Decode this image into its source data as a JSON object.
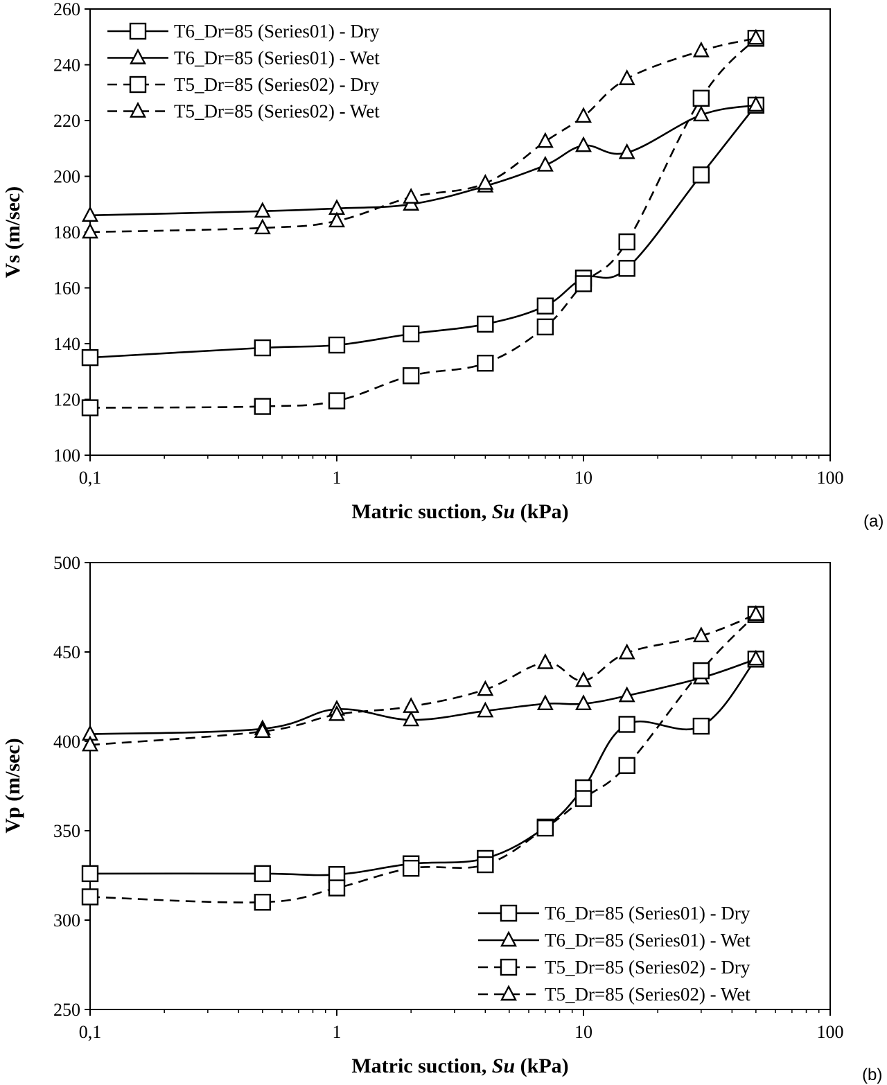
{
  "chart_data": [
    {
      "type": "line",
      "panel_label": "(a)",
      "xlabel_prefix": "Matric suction, ",
      "xlabel_italic": "Su",
      "xlabel_suffix": " (kPa)",
      "ylabel": "Vs (m/sec)",
      "xscale": "log",
      "xlim": [
        0.1,
        100
      ],
      "ylim": [
        100,
        260
      ],
      "x_ticks": [
        0.1,
        1,
        10,
        100
      ],
      "x_tick_labels": [
        "0,1",
        "1",
        "10",
        "100"
      ],
      "y_ticks": [
        100,
        120,
        140,
        160,
        180,
        200,
        220,
        240,
        260
      ],
      "y_tick_labels": [
        "100",
        "120",
        "140",
        "160",
        "180",
        "200",
        "220",
        "240",
        "260"
      ],
      "grid": false,
      "legend_position": "top-left",
      "x": [
        0.1,
        0.5,
        1,
        2,
        4,
        7,
        10,
        15,
        30,
        50
      ],
      "series": [
        {
          "name": "T6_Dr=85 (Series01) - Dry",
          "marker": "square",
          "line": "solid",
          "values": [
            135,
            138.5,
            139.5,
            143.5,
            147,
            153.5,
            163.5,
            167,
            200.5,
            225.5
          ]
        },
        {
          "name": "T6_Dr=85 (Series01) - Wet",
          "marker": "triangle",
          "line": "solid",
          "values": [
            186,
            187.5,
            188.5,
            190,
            196.5,
            204,
            211,
            208.5,
            222,
            225.5
          ]
        },
        {
          "name": "T5_Dr=85 (Series02) - Dry",
          "marker": "square",
          "line": "dashed",
          "values": [
            117,
            117.5,
            119.5,
            128.5,
            133,
            146,
            161.5,
            176.5,
            228,
            249.5
          ]
        },
        {
          "name": "T5_Dr=85 (Series02) - Wet",
          "marker": "triangle",
          "line": "dashed",
          "values": [
            180,
            181.5,
            184,
            192.5,
            197.5,
            212.5,
            221.5,
            235,
            245,
            249.5
          ]
        }
      ]
    },
    {
      "type": "line",
      "panel_label": "(b)",
      "xlabel_prefix": "Matric suction, ",
      "xlabel_italic": "Su",
      "xlabel_suffix": " (kPa)",
      "ylabel": "Vp (m/sec)",
      "xscale": "log",
      "xlim": [
        0.1,
        100
      ],
      "ylim": [
        250,
        500
      ],
      "x_ticks": [
        0.1,
        1,
        10,
        100
      ],
      "x_tick_labels": [
        "0,1",
        "1",
        "10",
        "100"
      ],
      "y_ticks": [
        250,
        300,
        350,
        400,
        450,
        500
      ],
      "y_tick_labels": [
        "250",
        "300",
        "350",
        "400",
        "450",
        "500"
      ],
      "grid": false,
      "legend_position": "bottom-right",
      "x": [
        0.1,
        0.5,
        1,
        2,
        4,
        7,
        10,
        15,
        30,
        50
      ],
      "series": [
        {
          "name": "T6_Dr=85 (Series01) - Dry",
          "marker": "square",
          "line": "solid",
          "values": [
            326,
            326,
            325.5,
            331.5,
            334.5,
            352,
            374,
            409.5,
            408.5,
            446
          ]
        },
        {
          "name": "T6_Dr=85 (Series01) - Wet",
          "marker": "triangle",
          "line": "solid",
          "values": [
            404,
            407,
            418,
            412,
            417,
            421,
            421,
            425.5,
            435.5,
            446
          ]
        },
        {
          "name": "T5_Dr=85 (Series02) - Dry",
          "marker": "square",
          "line": "dashed",
          "values": [
            313,
            310,
            318,
            329,
            331,
            351.5,
            368,
            386.5,
            439.5,
            471
          ]
        },
        {
          "name": "T5_Dr=85 (Series02) - Wet",
          "marker": "triangle",
          "line": "dashed",
          "values": [
            398,
            405.5,
            415,
            419.5,
            429,
            444,
            434,
            449.5,
            459,
            471
          ]
        }
      ]
    }
  ]
}
